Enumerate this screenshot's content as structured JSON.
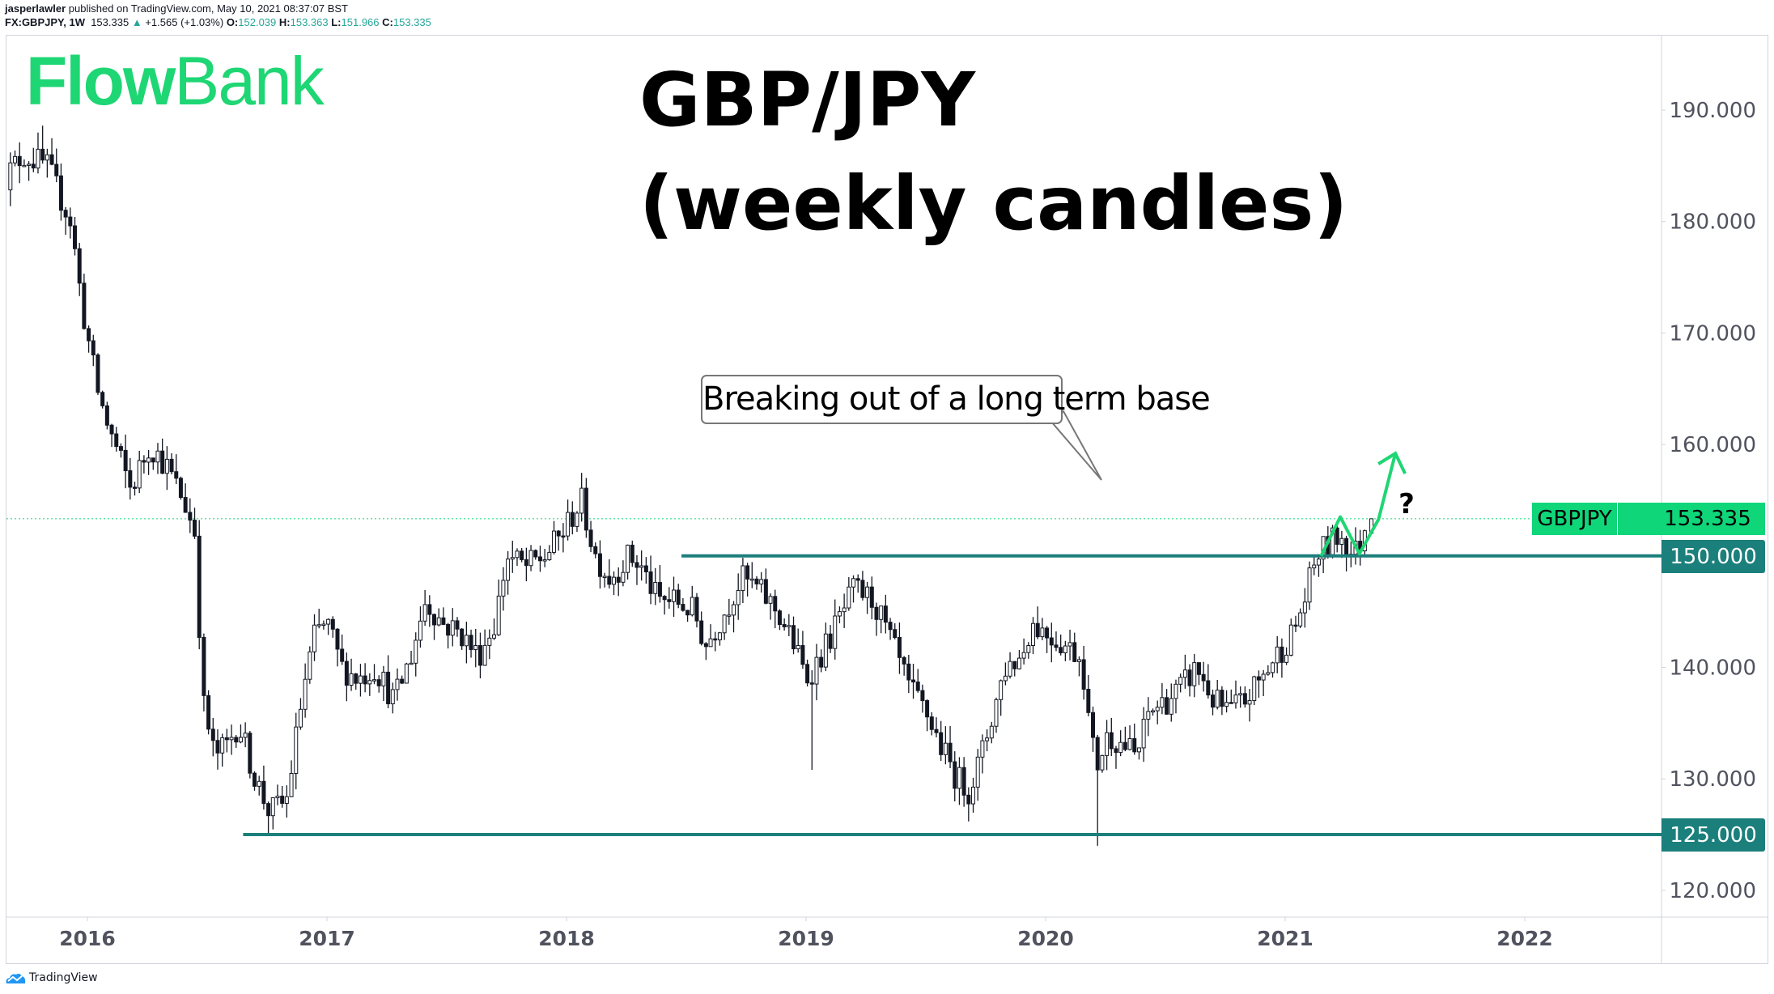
{
  "header": {
    "author": "jasperlawler",
    "published": "published on TradingView.com, May 10, 2021 08:37:07 BST",
    "symbol_interval": "FX:GBPJPY, 1W",
    "last": "153.335",
    "change": "+1.565 (+1.03%)",
    "o_label": "O:",
    "o": "152.039",
    "h_label": "H:",
    "h": "153.363",
    "l_label": "L:",
    "l": "151.966",
    "c_label": "C:",
    "c": "153.335"
  },
  "logo": {
    "part1": "Flow",
    "part2": "Bank"
  },
  "footer": {
    "brand": "TradingView"
  },
  "colors": {
    "brand_green": "#1ed673",
    "level_line": "#1b7f7c",
    "up": "#ffffff",
    "down": "#131722",
    "axis_text": "#50535e"
  },
  "chart_data": {
    "type": "candlestick",
    "title_line1": "GBP/JPY",
    "title_line2": "(weekly candles)",
    "interval": "weekly",
    "symbol_label": "GBPJPY",
    "last_price_label": "153.335",
    "last_price": 153.335,
    "last_candle": {
      "open": 152.039,
      "high": 153.363,
      "low": 151.966,
      "close": 153.335
    },
    "ylim": [
      115,
      197
    ],
    "y_ticks": [
      "190.000",
      "180.000",
      "170.000",
      "160.000",
      "140.000",
      "130.000",
      "120.000"
    ],
    "y_tick_values": [
      190,
      180,
      170,
      160,
      140,
      130,
      120
    ],
    "x_ticks": [
      "2016",
      "2017",
      "2018",
      "2019",
      "2020",
      "2021",
      "2022"
    ],
    "approx_close_path": [
      [
        2015.64,
        183
      ],
      [
        2015.75,
        186
      ],
      [
        2015.85,
        185
      ],
      [
        2015.95,
        180
      ],
      [
        2016.0,
        172
      ],
      [
        2016.06,
        165
      ],
      [
        2016.1,
        162
      ],
      [
        2016.2,
        156
      ],
      [
        2016.28,
        160
      ],
      [
        2016.35,
        158
      ],
      [
        2016.42,
        155
      ],
      [
        2016.47,
        152
      ],
      [
        2016.5,
        137
      ],
      [
        2016.55,
        132
      ],
      [
        2016.6,
        133
      ],
      [
        2016.65,
        135
      ],
      [
        2016.72,
        130
      ],
      [
        2016.78,
        127
      ],
      [
        2016.85,
        128
      ],
      [
        2016.92,
        138
      ],
      [
        2016.97,
        143
      ],
      [
        2017.02,
        144
      ],
      [
        2017.08,
        140
      ],
      [
        2017.15,
        139
      ],
      [
        2017.22,
        140
      ],
      [
        2017.3,
        137
      ],
      [
        2017.37,
        141
      ],
      [
        2017.43,
        146
      ],
      [
        2017.5,
        144
      ],
      [
        2017.58,
        143
      ],
      [
        2017.65,
        141
      ],
      [
        2017.72,
        144
      ],
      [
        2017.77,
        150
      ],
      [
        2017.85,
        149
      ],
      [
        2017.93,
        150
      ],
      [
        2018.0,
        152
      ],
      [
        2018.08,
        155
      ],
      [
        2018.14,
        150
      ],
      [
        2018.2,
        148
      ],
      [
        2018.28,
        150
      ],
      [
        2018.33,
        149
      ],
      [
        2018.4,
        146
      ],
      [
        2018.47,
        146
      ],
      [
        2018.55,
        145
      ],
      [
        2018.6,
        142
      ],
      [
        2018.68,
        145
      ],
      [
        2018.75,
        148
      ],
      [
        2018.82,
        147
      ],
      [
        2018.9,
        145
      ],
      [
        2018.97,
        142
      ],
      [
        2019.02,
        139
      ],
      [
        2019.08,
        141
      ],
      [
        2019.15,
        144
      ],
      [
        2019.22,
        147
      ],
      [
        2019.3,
        146
      ],
      [
        2019.38,
        142
      ],
      [
        2019.45,
        138
      ],
      [
        2019.52,
        136
      ],
      [
        2019.58,
        133
      ],
      [
        2019.65,
        130
      ],
      [
        2019.7,
        129
      ],
      [
        2019.75,
        132
      ],
      [
        2019.8,
        136
      ],
      [
        2019.85,
        140
      ],
      [
        2019.92,
        141
      ],
      [
        2019.96,
        144
      ],
      [
        2020.03,
        143
      ],
      [
        2020.1,
        142
      ],
      [
        2020.17,
        141
      ],
      [
        2020.2,
        135
      ],
      [
        2020.23,
        131
      ],
      [
        2020.28,
        134
      ],
      [
        2020.35,
        133
      ],
      [
        2020.4,
        132
      ],
      [
        2020.45,
        136
      ],
      [
        2020.52,
        137
      ],
      [
        2020.58,
        138
      ],
      [
        2020.65,
        140
      ],
      [
        2020.72,
        137
      ],
      [
        2020.78,
        136
      ],
      [
        2020.85,
        137
      ],
      [
        2020.92,
        139
      ],
      [
        2020.98,
        141
      ],
      [
        2021.05,
        143
      ],
      [
        2021.1,
        146
      ],
      [
        2021.15,
        150
      ],
      [
        2021.2,
        151
      ],
      [
        2021.25,
        152
      ],
      [
        2021.3,
        150
      ],
      [
        2021.33,
        151
      ],
      [
        2021.36,
        153.335
      ]
    ],
    "wick_extremes": [
      [
        2016.78,
        126.2
      ],
      [
        2018.08,
        156.6
      ],
      [
        2019.02,
        130.8
      ],
      [
        2020.21,
        124.0
      ],
      [
        2015.82,
        188.6
      ]
    ],
    "annotations": {
      "callout": "Breaking out of a long term base",
      "question_mark": "?",
      "levels": [
        {
          "value": 150,
          "label": "150.000",
          "from": 2018.48
        },
        {
          "value": 125,
          "label": "125.000",
          "from": 2016.65
        }
      ],
      "projection_path": [
        [
          2021.15,
          150
        ],
        [
          2021.23,
          153.5
        ],
        [
          2021.31,
          150.2
        ],
        [
          2021.39,
          153.3
        ],
        [
          2021.46,
          159.2
        ]
      ]
    }
  }
}
